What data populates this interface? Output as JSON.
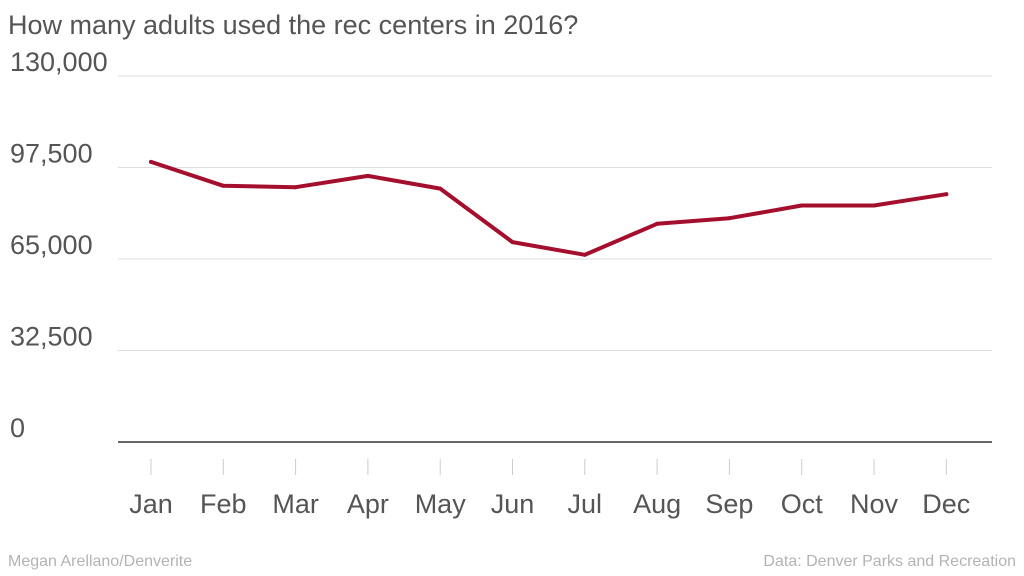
{
  "title": "How many adults used the rec centers in 2016?",
  "footer": {
    "credit": "Megan Arellano/Denverite",
    "source": "Data: Denver Parks and Recreation"
  },
  "colors": {
    "line": "#a50f2e",
    "grid": "#dddddd",
    "axis": "#333333",
    "text": "#555555",
    "footer": "#b3b3b3"
  },
  "chart_data": {
    "type": "line",
    "categories": [
      "Jan",
      "Feb",
      "Mar",
      "Apr",
      "May",
      "Jun",
      "Jul",
      "Aug",
      "Sep",
      "Oct",
      "Nov",
      "Dec"
    ],
    "series": [
      {
        "values": [
          99500,
          91000,
          90500,
          94500,
          90000,
          71000,
          66500,
          77500,
          79500,
          84000,
          84000,
          88000
        ]
      }
    ],
    "ylim": [
      0,
      130000
    ],
    "yticks": [
      0,
      32500,
      65000,
      97500,
      130000
    ],
    "ytick_labels": [
      "0",
      "32,500",
      "65,000",
      "97,500",
      "130,000"
    ],
    "grid": true,
    "legend": "none"
  }
}
